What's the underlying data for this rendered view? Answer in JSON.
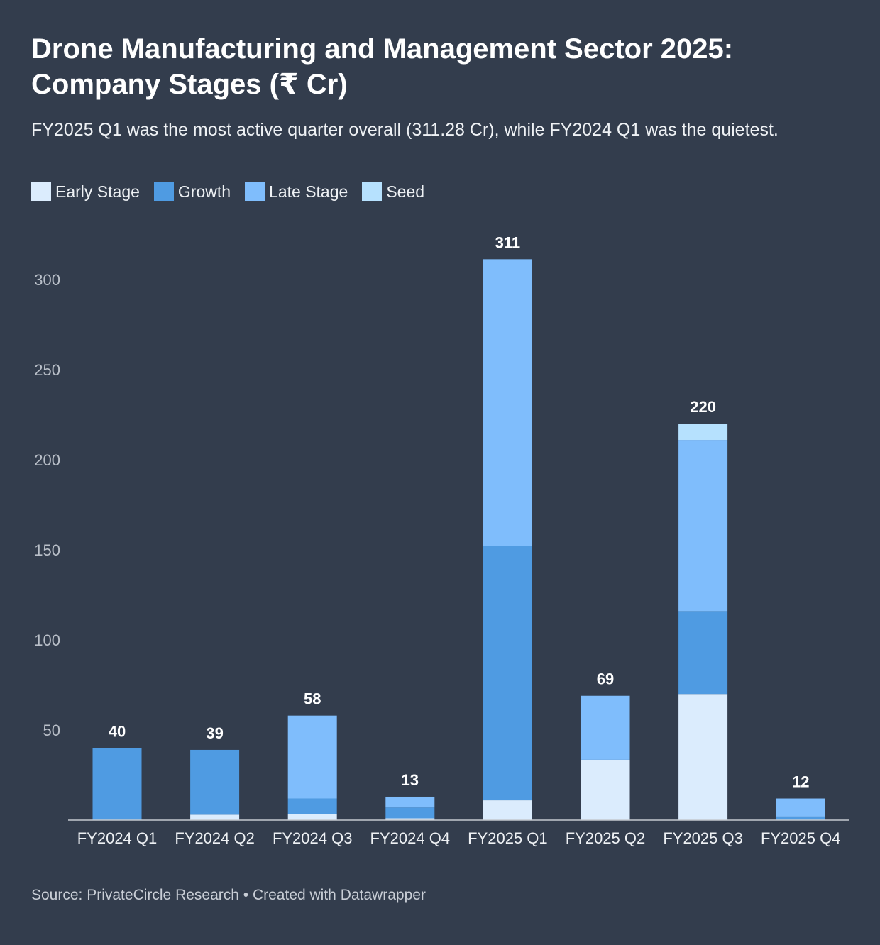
{
  "title": "Drone Manufacturing and Management Sector 2025: Company Stages (₹ Cr)",
  "subtitle": "FY2025 Q1 was the most active quarter overall (311.28 Cr), while FY2024 Q1 was the quietest.",
  "source": "Source: PrivateCircle Research • Created with Datawrapper",
  "colors": {
    "Early Stage": "#dbecfd",
    "Growth": "#4f9be2",
    "Late Stage": "#7fbdfc",
    "Seed": "#b6e1fe"
  },
  "chart_data": {
    "type": "bar",
    "stacked": true,
    "categories": [
      "FY2024 Q1",
      "FY2024 Q2",
      "FY2024 Q3",
      "FY2024 Q4",
      "FY2025 Q1",
      "FY2025 Q2",
      "FY2025 Q3",
      "FY2025 Q4"
    ],
    "series": [
      {
        "name": "Early Stage",
        "values": [
          0,
          3,
          3.5,
          1,
          11,
          33.5,
          70,
          0
        ]
      },
      {
        "name": "Growth",
        "values": [
          40,
          36,
          8.5,
          6,
          141.28,
          0,
          46,
          2
        ]
      },
      {
        "name": "Late Stage",
        "values": [
          0,
          0,
          46,
          6,
          159,
          35.5,
          95,
          10
        ]
      },
      {
        "name": "Seed",
        "values": [
          0,
          0,
          0,
          0,
          0,
          0,
          9,
          0
        ]
      }
    ],
    "totals": [
      "40",
      "39",
      "58",
      "13",
      "311",
      "69",
      "220",
      "12"
    ],
    "ylim": [
      0,
      320
    ],
    "yticks": [
      50,
      100,
      150,
      200,
      250,
      300
    ],
    "legend_position": "top-left"
  }
}
